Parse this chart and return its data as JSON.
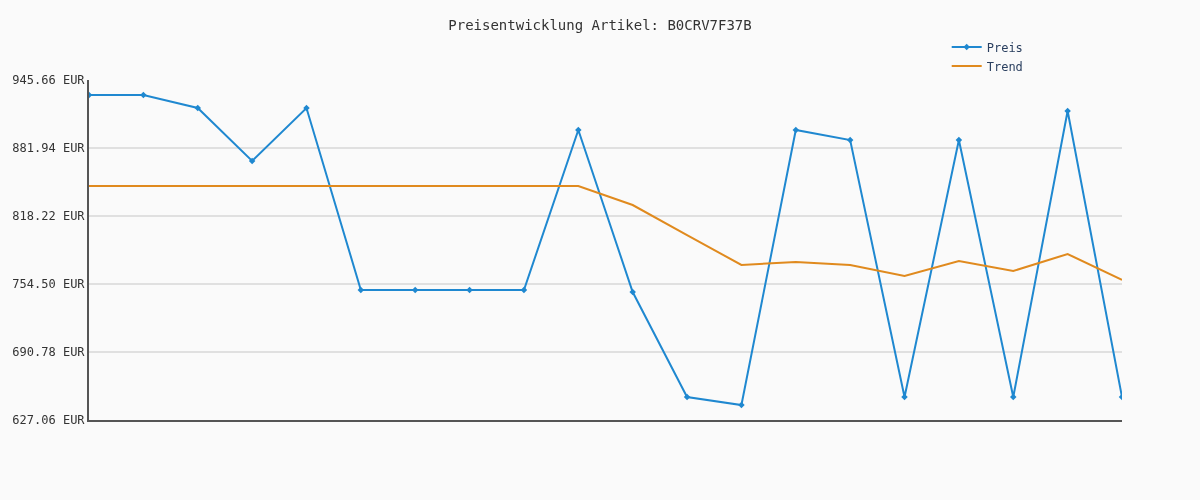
{
  "chart_data": {
    "type": "line",
    "title": "Preisentwicklung Artikel: B0CRV7F37B",
    "categories": [
      null,
      null,
      null,
      null,
      null,
      null,
      null,
      null,
      null,
      null,
      null,
      null,
      null,
      null,
      null,
      null,
      null,
      null,
      null,
      null
    ],
    "series": [
      {
        "name": "Preis",
        "color": "#1f88d0",
        "marker": "diamond",
        "values": [
          931.6,
          931.6,
          919.4,
          869.8,
          919.4,
          748.9,
          748.9,
          748.9,
          748.9,
          898.8,
          747.0,
          648.6,
          641.1,
          898.8,
          889.4,
          648.6,
          889.4,
          648.6,
          916.6,
          648.6
        ]
      },
      {
        "name": "Trend",
        "color": "#e08a1e",
        "marker": "none",
        "values": [
          846.3,
          846.3,
          846.3,
          846.3,
          846.3,
          846.3,
          846.3,
          846.3,
          846.3,
          846.3,
          828.5,
          800.4,
          772.3,
          775.1,
          772.3,
          762.0,
          776.0,
          766.7,
          782.6,
          758.3
        ]
      }
    ],
    "ylim": [
      627.06,
      945.66
    ],
    "yticks": [
      {
        "value": 627.06,
        "label": "627.06 EUR"
      },
      {
        "value": 690.78,
        "label": "690.78 EUR"
      },
      {
        "value": 754.5,
        "label": "754.50 EUR"
      },
      {
        "value": 818.22,
        "label": "818.22 EUR"
      },
      {
        "value": 881.94,
        "label": "881.94 EUR"
      },
      {
        "value": 945.66,
        "label": "945.66 EUR"
      }
    ],
    "grid": "y",
    "legend": "top right",
    "tick_labels": "y",
    "line_style": "solid"
  }
}
